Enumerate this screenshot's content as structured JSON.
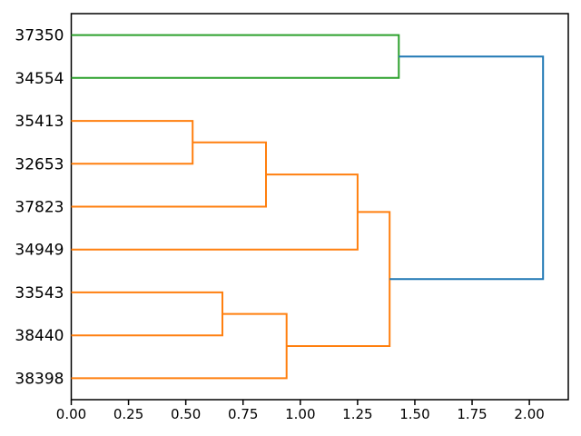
{
  "figure": {
    "background": "#ffffff"
  },
  "chart_data": {
    "type": "dendrogram",
    "orientation": "right",
    "title": "",
    "xlabel": "",
    "ylabel": "",
    "grid": false,
    "leaves": [
      "37350",
      "34554",
      "35413",
      "32653",
      "37823",
      "34949",
      "33543",
      "38440",
      "38398"
    ],
    "leaf_positions": [
      85,
      75,
      65,
      55,
      45,
      35,
      25,
      15,
      5
    ],
    "x_ticks": [
      "0.00",
      "0.25",
      "0.50",
      "0.75",
      "1.00",
      "1.25",
      "1.50",
      "1.75",
      "2.00"
    ],
    "xlim": [
      0,
      2.17
    ],
    "ylim": [
      0,
      90
    ],
    "colors": {
      "above_threshold_link": "#1f77b4",
      "cluster_green": "#2ca02c",
      "cluster_orange": "#ff7f0e",
      "axes": "#000000"
    },
    "merges": [
      {
        "members": [
          "35413",
          "32653"
        ],
        "distance": 0.53,
        "color": "#ff7f0e"
      },
      {
        "members": [
          "33543",
          "38440"
        ],
        "distance": 0.66,
        "color": "#ff7f0e"
      },
      {
        "members": [
          "(35413,32653)",
          "37823"
        ],
        "distance": 0.85,
        "color": "#ff7f0e"
      },
      {
        "members": [
          "(33543,38440)",
          "38398"
        ],
        "distance": 0.94,
        "color": "#ff7f0e"
      },
      {
        "members": [
          "(35413,32653,37823)",
          "34949"
        ],
        "distance": 1.25,
        "color": "#ff7f0e"
      },
      {
        "members": [
          "(35413,32653,37823,34949)",
          "(33543,38440,38398)"
        ],
        "distance": 1.39,
        "color": "#ff7f0e"
      },
      {
        "members": [
          "37350",
          "34554"
        ],
        "distance": 1.43,
        "color": "#2ca02c"
      },
      {
        "members": [
          "(37350,34554)",
          "(35413,32653,37823,34949,33543,38440,38398)"
        ],
        "distance": 2.06,
        "color": "#1f77b4"
      }
    ],
    "links": [
      {
        "color": "#2ca02c",
        "path": [
          [
            0,
            85
          ],
          [
            1.43,
            85
          ],
          [
            1.43,
            75
          ],
          [
            0,
            75
          ]
        ]
      },
      {
        "color": "#ff7f0e",
        "path": [
          [
            0,
            65
          ],
          [
            0.53,
            65
          ],
          [
            0.53,
            55
          ],
          [
            0,
            55
          ]
        ]
      },
      {
        "color": "#ff7f0e",
        "path": [
          [
            0.53,
            60
          ],
          [
            0.85,
            60
          ],
          [
            0.85,
            45
          ],
          [
            0,
            45
          ]
        ]
      },
      {
        "color": "#ff7f0e",
        "path": [
          [
            0.85,
            52.5
          ],
          [
            1.25,
            52.5
          ],
          [
            1.25,
            35
          ],
          [
            0,
            35
          ]
        ]
      },
      {
        "color": "#ff7f0e",
        "path": [
          [
            0,
            25
          ],
          [
            0.66,
            25
          ],
          [
            0.66,
            15
          ],
          [
            0,
            15
          ]
        ]
      },
      {
        "color": "#ff7f0e",
        "path": [
          [
            0.66,
            20
          ],
          [
            0.94,
            20
          ],
          [
            0.94,
            5
          ],
          [
            0,
            5
          ]
        ]
      },
      {
        "color": "#ff7f0e",
        "path": [
          [
            1.25,
            43.75
          ],
          [
            1.39,
            43.75
          ],
          [
            1.39,
            12.5
          ],
          [
            0.94,
            12.5
          ]
        ]
      },
      {
        "color": "#1f77b4",
        "path": [
          [
            1.43,
            80
          ],
          [
            2.06,
            80
          ],
          [
            2.06,
            28.125
          ],
          [
            1.39,
            28.125
          ]
        ]
      }
    ]
  }
}
